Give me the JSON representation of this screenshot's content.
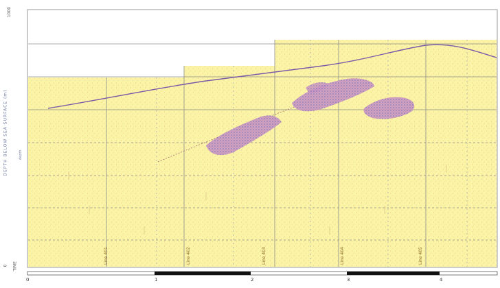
{
  "figure": {
    "y_axis_title": "DEPTH BELOW SEA SURFACE (m)",
    "y_axis_subtitle": "depth",
    "corner_label": "TIME",
    "y_ticks": [
      "1000",
      "0"
    ],
    "x_ticks": [
      "0",
      "1",
      "2",
      "3",
      "4"
    ],
    "section_labels": [
      "Line 401",
      "Line 402",
      "Line 403",
      "Line 404",
      "Line 405"
    ],
    "colors": {
      "background": "#fbf3a6",
      "grid": "#8a8a8a",
      "reflector": "#7a5aa8",
      "anomaly_fill": "#b08ac0",
      "scale_bar": "#111111"
    }
  }
}
